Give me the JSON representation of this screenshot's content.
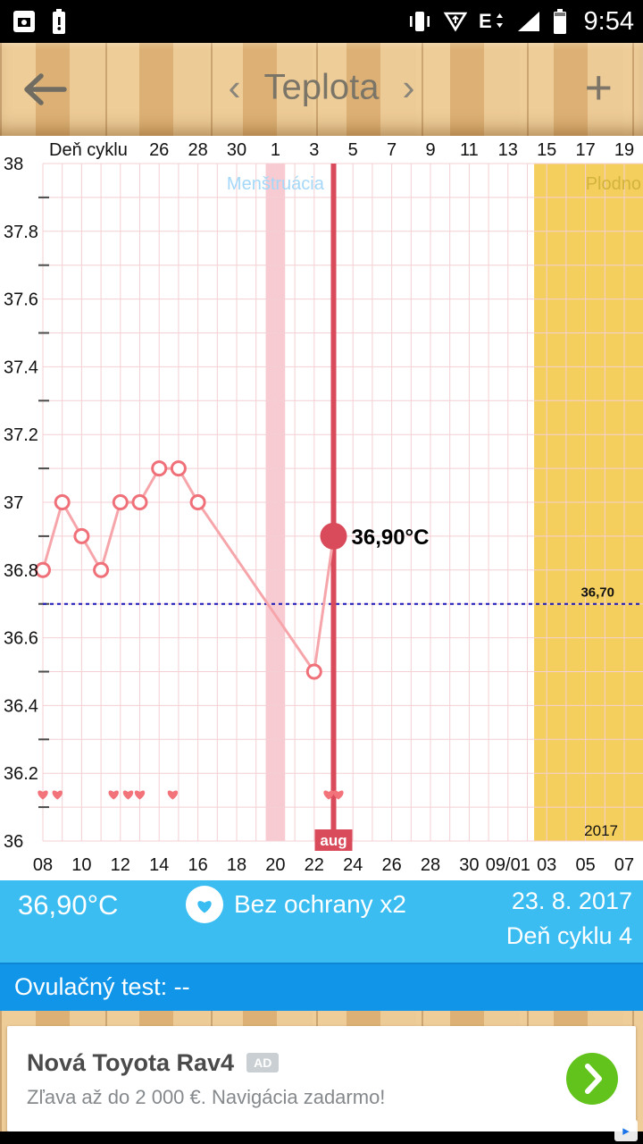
{
  "status_bar": {
    "time": "9:54",
    "network_type": "E"
  },
  "header": {
    "title": "Teplota",
    "prev_icon": "‹",
    "next_icon": "›",
    "add_icon": "+"
  },
  "chart_data": {
    "type": "line",
    "top_axis": {
      "label": "Deň cyklu",
      "ticks": [
        "26",
        "28",
        "30",
        "1",
        "3",
        "5",
        "7",
        "9",
        "11",
        "13",
        "15",
        "17",
        "19"
      ],
      "tick_days": [
        6,
        8,
        10,
        12,
        14,
        16,
        18,
        20,
        22,
        24,
        26,
        28,
        30
      ]
    },
    "x_axis": {
      "ticks": [
        "08",
        "10",
        "12",
        "14",
        "16",
        "18",
        "20",
        "22",
        "24",
        "26",
        "28",
        "30",
        "09/01",
        "03",
        "05",
        "07"
      ],
      "tick_days": [
        0,
        2,
        4,
        6,
        8,
        10,
        12,
        14,
        16,
        18,
        20,
        22,
        24,
        26,
        28,
        30
      ],
      "days_total": 30
    },
    "y_axis": {
      "min": 36,
      "max": 38,
      "step": 0.2,
      "labels": [
        "38",
        "37.8",
        "37.6",
        "37.4",
        "37.2",
        "37",
        "36.8",
        "36.6",
        "36.4",
        "36.2",
        "36"
      ]
    },
    "series": {
      "name": "temperature",
      "points": [
        {
          "day": 0,
          "temp": 36.8
        },
        {
          "day": 1,
          "temp": 37.0
        },
        {
          "day": 2,
          "temp": 36.9
        },
        {
          "day": 3,
          "temp": 36.8
        },
        {
          "day": 4,
          "temp": 37.0
        },
        {
          "day": 5,
          "temp": 37.0
        },
        {
          "day": 6,
          "temp": 37.1
        },
        {
          "day": 7,
          "temp": 37.1
        },
        {
          "day": 8,
          "temp": 37.0
        },
        {
          "day": 14,
          "temp": 36.5
        },
        {
          "day": 15,
          "temp": 36.9
        }
      ]
    },
    "current": {
      "day": 15,
      "temp": 36.9,
      "label": "36,90°C"
    },
    "coverline": {
      "temp": 36.7,
      "label": "36,70"
    },
    "menstruation_band": {
      "label": "Menštruácia",
      "day_start": 11.5,
      "day_end": 12.5
    },
    "fertility_band": {
      "label": "Plodno",
      "day_start": 25.35,
      "day_end": 31
    },
    "hearts_days": [
      0,
      0.75,
      3.65,
      4.4,
      5.0,
      6.7,
      14.75,
      15.25
    ],
    "hearts_level_temp": 36.14,
    "month_badge": "aug",
    "year_label": "2017",
    "colors": {
      "line": "#f6a6aa",
      "marker": "#ef7078",
      "current": "#d94a5b",
      "menstruation_band": "#f8cbd3",
      "fertility_band": "#f5cf5e",
      "grid": "#f4cfd3",
      "coverline": "#1a17b8",
      "heart": "#f3737b",
      "menstruation_label": "#a5d8f8",
      "fertility_label": "#d2b33c"
    }
  },
  "info_bar": {
    "temperature": "36,90°C",
    "intercourse": "Bez ochrany x2",
    "date": "23. 8. 2017",
    "cycle_day": "Deň cyklu 4"
  },
  "ovulation_bar": {
    "text": "Ovulačný test: --"
  },
  "ad": {
    "title": "Nová Toyota Rav4",
    "badge": "AD",
    "subtitle": "Zľava až do 2 000 €. Navigácia zadarmo!",
    "adchoices_icon": "▸"
  }
}
